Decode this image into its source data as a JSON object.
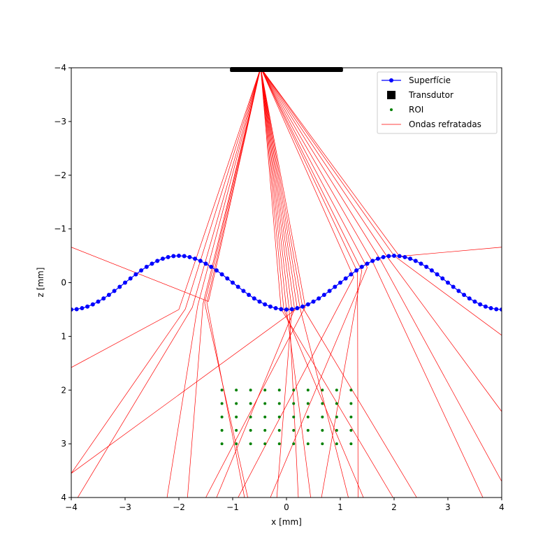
{
  "chart_data": {
    "type": "line",
    "xlabel": "x [mm]",
    "ylabel": "z [mm]",
    "xlim": [
      -4,
      4
    ],
    "ylim": [
      -4,
      4
    ],
    "y_inverted": true,
    "grid": false,
    "x_ticks": [
      -4,
      -3,
      -2,
      -1,
      0,
      1,
      2,
      3,
      4
    ],
    "y_ticks": [
      -4,
      -3,
      -2,
      -1,
      0,
      1,
      2,
      3,
      4
    ],
    "x_tick_labels": [
      "−4",
      "−3",
      "−2",
      "−1",
      "0",
      "1",
      "2",
      "3",
      "4"
    ],
    "y_tick_labels": [
      "−4",
      "−3",
      "−2",
      "−1",
      "0",
      "1",
      "2",
      "3",
      "4"
    ],
    "legend_position": "top-right",
    "legend": [
      {
        "label": "Superfície",
        "marker": "line-dot",
        "color": "#0000ff"
      },
      {
        "label": "Transdutor",
        "marker": "square",
        "color": "#000000"
      },
      {
        "label": "ROI",
        "marker": "dot",
        "color": "#008000"
      },
      {
        "label": "Ondas refratadas",
        "marker": "line",
        "color": "#ff0000"
      }
    ],
    "surface": {
      "color": "#0000ff",
      "x_start": -4,
      "x_end": 4,
      "n_points": 81,
      "z_formula": "z = -0.5*cos(pi*(x-2)/2)"
    },
    "transducer": {
      "color": "#000000",
      "x": [
        -1.05,
        1.05
      ],
      "z": -4
    },
    "roi": {
      "color": "#008000",
      "x": [
        -1.2,
        -0.933,
        -0.667,
        -0.4,
        -0.133,
        0.133,
        0.4,
        0.667,
        0.933,
        1.2
      ],
      "z": [
        2.0,
        2.25,
        2.5,
        2.75,
        3.0
      ]
    },
    "rays": {
      "color": "#ff0000",
      "source": [
        -0.48,
        -4
      ],
      "paths": [
        [
          [
            -2.0,
            0.5
          ],
          [
            -4.0,
            1.58
          ]
        ],
        [
          [
            -1.88,
            0.49
          ],
          [
            -4.0,
            3.55
          ]
        ],
        [
          [
            -1.75,
            0.46
          ],
          [
            -3.88,
            4.0
          ]
        ],
        [
          [
            -1.65,
            0.43
          ],
          [
            -2.22,
            4.0
          ]
        ],
        [
          [
            -1.55,
            0.39
          ],
          [
            -1.84,
            4.0
          ]
        ],
        [
          [
            -1.52,
            0.38
          ],
          [
            -0.72,
            4.0
          ]
        ],
        [
          [
            -1.48,
            0.37
          ],
          [
            -0.78,
            4.0
          ]
        ],
        [
          [
            -1.45,
            0.35
          ],
          [
            -4.0,
            -0.66
          ]
        ],
        [
          [
            -0.1,
            0.49
          ],
          [
            1.98,
            4.0
          ]
        ],
        [
          [
            -0.05,
            0.5
          ],
          [
            1.43,
            4.0
          ]
        ],
        [
          [
            0.0,
            0.5
          ],
          [
            0.45,
            4.0
          ]
        ],
        [
          [
            0.05,
            0.5
          ],
          [
            0.22,
            4.0
          ]
        ],
        [
          [
            0.1,
            0.49
          ],
          [
            -0.18,
            4.0
          ]
        ],
        [
          [
            0.15,
            0.49
          ],
          [
            -1.3,
            4.0
          ]
        ],
        [
          [
            0.2,
            0.48
          ],
          [
            -4.0,
            3.55
          ]
        ],
        [
          [
            0.25,
            0.47
          ],
          [
            1.15,
            4.0
          ]
        ],
        [
          [
            0.3,
            0.46
          ],
          [
            2.42,
            4.0
          ]
        ],
        [
          [
            0.35,
            0.45
          ],
          [
            -1.5,
            4.0
          ]
        ],
        [
          [
            1.25,
            -0.1
          ],
          [
            -0.9,
            4.0
          ]
        ],
        [
          [
            1.32,
            -0.2
          ],
          [
            1.33,
            4.0
          ]
        ],
        [
          [
            1.4,
            -0.22
          ],
          [
            0.65,
            4.0
          ]
        ],
        [
          [
            1.5,
            -0.28
          ],
          [
            -0.3,
            4.0
          ]
        ],
        [
          [
            1.62,
            -0.35
          ],
          [
            3.65,
            4.0
          ]
        ],
        [
          [
            1.75,
            -0.42
          ],
          [
            4.0,
            3.7
          ]
        ],
        [
          [
            1.88,
            -0.47
          ],
          [
            4.0,
            2.4
          ]
        ],
        [
          [
            2.0,
            -0.5
          ],
          [
            4.0,
            0.98
          ]
        ],
        [
          [
            2.1,
            -0.49
          ],
          [
            4.0,
            -0.66
          ]
        ]
      ]
    }
  }
}
